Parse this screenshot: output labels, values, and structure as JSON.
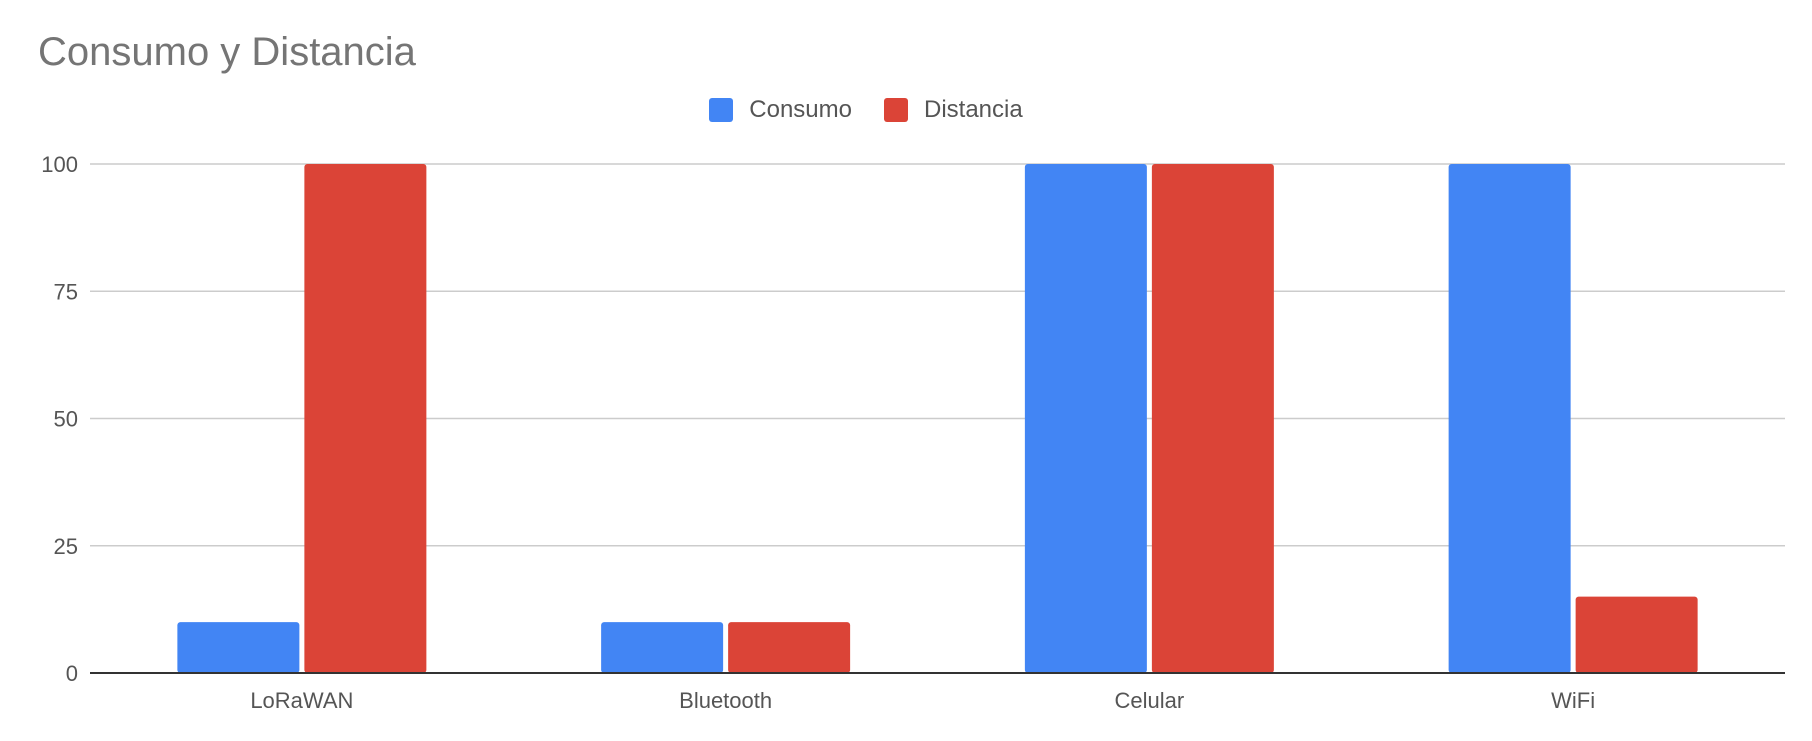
{
  "chart_data": {
    "type": "bar",
    "title": "Consumo y Distancia",
    "categories": [
      "LoRaWAN",
      "Bluetooth",
      "Celular",
      "WiFi"
    ],
    "series": [
      {
        "name": "Consumo",
        "values": [
          10,
          10,
          100,
          100
        ],
        "color": "#4285F4"
      },
      {
        "name": "Distancia",
        "values": [
          100,
          10,
          100,
          15
        ],
        "color": "#DB4437"
      }
    ],
    "ylim": [
      0,
      100
    ],
    "yticks": [
      "0",
      "25",
      "50",
      "75",
      "100"
    ],
    "grid": true,
    "legend_position": "top-center",
    "xlabel": "",
    "ylabel": ""
  }
}
